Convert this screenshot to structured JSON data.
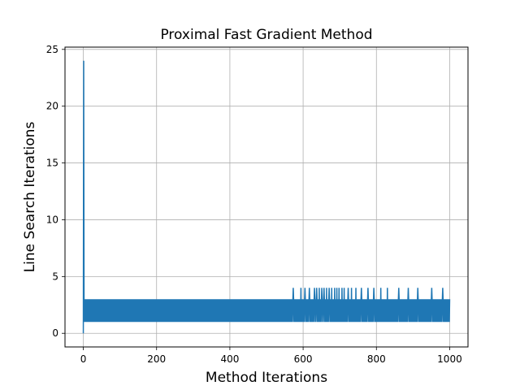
{
  "chart_data": {
    "type": "line",
    "title": "Proximal Fast Gradient Method",
    "xlabel": "Method Iterations",
    "ylabel": "Line Search Iterations",
    "xlim": [
      -50,
      1050
    ],
    "ylim": [
      -1.2,
      25.2
    ],
    "xticks": [
      0,
      200,
      400,
      600,
      800,
      1000
    ],
    "yticks": [
      0,
      5,
      10,
      15,
      20,
      25
    ],
    "grid": true,
    "series": [
      {
        "color": "#1f77b4",
        "x_start": 0,
        "x_end": 1000,
        "initial_values": [
          0,
          24,
          3,
          1
        ],
        "repeating_pattern": [
          3,
          1
        ],
        "spike_value": 4,
        "spike_x": [
          573,
          594,
          605,
          617,
          631,
          637,
          644,
          651,
          657,
          664,
          671,
          678,
          686,
          692,
          698,
          706,
          712,
          723,
          732,
          744,
          759,
          777,
          793,
          812,
          830,
          861,
          887,
          913,
          951,
          981
        ]
      }
    ]
  }
}
